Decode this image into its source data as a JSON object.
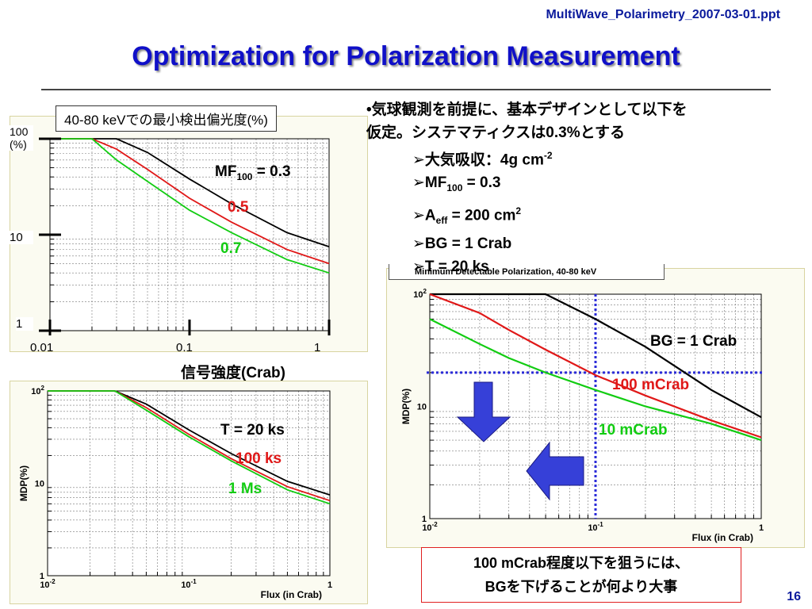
{
  "header": {
    "filename": "MultiWave_Polarimetry_2007-03-01.ppt",
    "title": "Optimization for Polarization Measurement"
  },
  "colors": {
    "black": "#000000",
    "red": "#e01818",
    "green": "#12cc12",
    "guide": "#2b2bd8",
    "arrow": "#3640d8"
  },
  "panel1": {
    "label": "40-80 keVでの最小検出偏光度(%)",
    "y_ticks": [
      "100",
      "(%)",
      "10",
      "1"
    ],
    "x_ticks": [
      "0.01",
      "0.1",
      "1"
    ],
    "xlabel": "信号強度(Crab)",
    "annotations": {
      "mf_prefix": "MF",
      "mf_sub": "100",
      "mf_suffix": " = 0.3",
      "red": "0.5",
      "green": "0.7"
    }
  },
  "panel2": {
    "y_ticks": [
      "10",
      "10",
      "1"
    ],
    "y_sups": [
      "2",
      ""
    ],
    "x_ticks": [
      "10",
      "10",
      "1"
    ],
    "x_sups": [
      "-2",
      "-1"
    ],
    "ylabel": "MDP(%)",
    "xlabel": "Flux (in Crab)",
    "annotations": {
      "black": "T = 20 ks",
      "red": "100 ks",
      "green": "1 Ms"
    }
  },
  "panel3": {
    "title": "Minimum Detectable Polarization, 40-80 keV",
    "y_ticks": [
      "10",
      "10",
      "1"
    ],
    "y_sups": [
      "2",
      ""
    ],
    "x_ticks": [
      "10",
      "10",
      "1"
    ],
    "x_sups": [
      "-2",
      "-1"
    ],
    "ylabel": "MDP(%)",
    "xlabel": "Flux (in Crab)",
    "annotations": {
      "black": "BG = 1 Crab",
      "red": "100 mCrab",
      "green": "10 mCrab"
    }
  },
  "bullets": {
    "intro1": "•気球観測を前提に、基本デザインとして以下を",
    "intro2": "仮定。システマティクスは0.3%とする",
    "b1_text": "大気吸収：4g cm",
    "b1_sup": "-2",
    "b2_prefix": "MF",
    "b2_sub": "100",
    "b2_suffix": " = 0.3",
    "b3_prefix": "A",
    "b3_sub": "eff",
    "b3_suffix": " = 200 cm",
    "b3_sup": "2",
    "b4": "BG = 1 Crab",
    "b5": "T = 20 ks"
  },
  "conclusion": {
    "line1": "100 mCrab程度以下を狙うには、",
    "line2": "BGを下げることが何より大事"
  },
  "page_number": "16",
  "chart_data": [
    {
      "type": "line",
      "label": "40-80 keVでの最小検出偏光度(%)",
      "xlabel": "信号強度(Crab)",
      "x_scale": "log",
      "y_scale": "log",
      "xlim": [
        0.01,
        1
      ],
      "ylim": [
        1,
        100
      ],
      "x": [
        0.01,
        0.02,
        0.03,
        0.05,
        0.1,
        0.2,
        0.5,
        1
      ],
      "series": [
        {
          "name": "MF100 = 0.3",
          "color": "#000000",
          "values": [
            100,
            100,
            100,
            72,
            38,
            21,
            10.5,
            7.5
          ]
        },
        {
          "name": "0.5",
          "color": "#e01818",
          "values": [
            100,
            100,
            78,
            48,
            24,
            13.5,
            7,
            5
          ]
        },
        {
          "name": "0.7",
          "color": "#12cc12",
          "values": [
            100,
            100,
            60,
            36,
            18,
            10.5,
            5.5,
            4
          ]
        }
      ],
      "grid": true
    },
    {
      "type": "line",
      "xlabel": "Flux (in Crab)",
      "ylabel": "MDP(%)",
      "x_scale": "log",
      "y_scale": "log",
      "xlim": [
        0.01,
        1
      ],
      "ylim": [
        1,
        100
      ],
      "x": [
        0.01,
        0.02,
        0.03,
        0.05,
        0.1,
        0.2,
        0.5,
        1
      ],
      "series": [
        {
          "name": "T = 20 ks",
          "color": "#000000",
          "values": [
            100,
            100,
            100,
            72,
            38,
            21,
            10.5,
            7.5
          ]
        },
        {
          "name": "100 ks",
          "color": "#e01818",
          "values": [
            100,
            100,
            100,
            66,
            34,
            18.5,
            9.2,
            6.5
          ]
        },
        {
          "name": "1 Ms",
          "color": "#12cc12",
          "values": [
            100,
            100,
            100,
            62,
            32,
            17.5,
            8.5,
            6
          ]
        }
      ],
      "grid": true
    },
    {
      "type": "line",
      "title": "Minimum Detectable Polarization, 40-80 keV",
      "xlabel": "Flux (in Crab)",
      "ylabel": "MDP(%)",
      "x_scale": "log",
      "y_scale": "log",
      "xlim": [
        0.01,
        1
      ],
      "ylim": [
        1,
        100
      ],
      "x": [
        0.01,
        0.02,
        0.03,
        0.05,
        0.1,
        0.2,
        0.5,
        1
      ],
      "series": [
        {
          "name": "BG = 1 Crab",
          "color": "#000000",
          "values": [
            100,
            100,
            100,
            100,
            60,
            34,
            14,
            8
          ]
        },
        {
          "name": "100 mCrab",
          "color": "#e01818",
          "values": [
            100,
            68,
            48,
            32,
            19,
            12.5,
            7.5,
            5.3
          ]
        },
        {
          "name": "10 mCrab",
          "color": "#12cc12",
          "values": [
            60,
            36,
            27,
            20,
            14,
            10,
            7,
            5
          ]
        }
      ],
      "reference_lines": {
        "x": 0.1,
        "y": 20
      },
      "grid": true
    }
  ]
}
